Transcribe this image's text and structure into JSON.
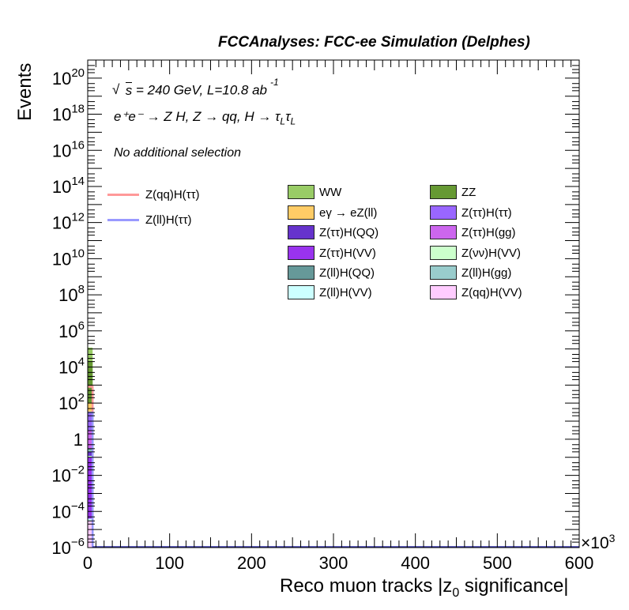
{
  "header": {
    "title": "FCCAnalyses: FCC-ee Simulation (Delphes)"
  },
  "annotations": {
    "sqrt_s": "s",
    "energy_lumi": " = 240 GeV, L=10.8 ab",
    "lumi_exp": "-1",
    "process": "e⁺e⁻ → Z H, Z  → qq, H  → τ",
    "process_sub1": "L",
    "process_tau2": "τ",
    "process_sub2": "L",
    "selection": "No additional selection"
  },
  "axes": {
    "ylabel": "Events",
    "xlabel_pre": "Reco muon tracks |z",
    "xlabel_sub": "0",
    "xlabel_post": " significance|",
    "x_multiplier": "×10",
    "x_multiplier_exp": "3"
  },
  "chart_data": {
    "type": "bar",
    "title": "FCCAnalyses: FCC-ee Simulation (Delphes)",
    "xlabel": "Reco muon tracks |z0 significance|",
    "ylabel": "Events",
    "xlim": [
      0,
      600
    ],
    "x_multiplier": 1000,
    "ylim": [
      1e-06,
      1e+21
    ],
    "ylog": true,
    "x_ticks": [
      "0",
      "100",
      "200",
      "300",
      "400",
      "500",
      "600"
    ],
    "y_ticks": [
      {
        "exp": -6,
        "base": "10",
        "sup": "−6"
      },
      {
        "exp": -4,
        "base": "10",
        "sup": "−4"
      },
      {
        "exp": -2,
        "base": "10",
        "sup": "−2"
      },
      {
        "exp": 0,
        "base": "1",
        "sup": ""
      },
      {
        "exp": 2,
        "base": "10",
        "sup": "2"
      },
      {
        "exp": 4,
        "base": "10",
        "sup": "4"
      },
      {
        "exp": 6,
        "base": "10",
        "sup": "6"
      },
      {
        "exp": 8,
        "base": "10",
        "sup": "8"
      },
      {
        "exp": 10,
        "base": "10",
        "sup": "10"
      },
      {
        "exp": 12,
        "base": "10",
        "sup": "12"
      },
      {
        "exp": 14,
        "base": "10",
        "sup": "14"
      },
      {
        "exp": 16,
        "base": "10",
        "sup": "16"
      },
      {
        "exp": 18,
        "base": "10",
        "sup": "18"
      },
      {
        "exp": 20,
        "base": "10",
        "sup": "20"
      }
    ],
    "first_bin": [
      0,
      6
    ],
    "stack": [
      {
        "name": "Z(qq)H(VV)",
        "color": "#ffccff",
        "top": 3e-05
      },
      {
        "name": "Z(ll)H(VV)",
        "color": "#ccffff",
        "top": 4e-05
      },
      {
        "name": "Z(ττ)H(VV)",
        "color": "#9933ee",
        "top": 0.1
      },
      {
        "name": "Z(νν)H(VV)",
        "color": "#ccffcc",
        "top": 0.12
      },
      {
        "name": "Z(ττ)H(QQ)",
        "color": "#6633cc",
        "top": 0.2
      },
      {
        "name": "Z(ll)H(gg)",
        "color": "#99cccc",
        "top": 0.25
      },
      {
        "name": "Z(ll)H(QQ)",
        "color": "#669999",
        "top": 0.3
      },
      {
        "name": "Z(ττ)H(gg)",
        "color": "#cc66ee",
        "top": 3
      },
      {
        "name": "Z(ττ)H(ττ)",
        "color": "#9966ff",
        "top": 30
      },
      {
        "name": "eγ → eZ(ll)",
        "color": "#ffcc66",
        "top": 100
      },
      {
        "name": "ZZ",
        "color": "#669933",
        "top": 20000
      },
      {
        "name": "WW",
        "color": "#99cc66",
        "top": 120000
      }
    ],
    "overlay_lines": [
      {
        "name": "Z(qq)H(ττ)",
        "color": "#ff9999",
        "value": 800
      },
      {
        "name": "Z(ll)H(ττ)",
        "color": "#9999ff",
        "value": 30
      }
    ],
    "legend": {
      "lines": [
        {
          "name": "Z(qq)H(ττ)",
          "color": "#ff9999"
        },
        {
          "name": "Z(ll)H(ττ)",
          "color": "#9999ff"
        }
      ],
      "boxes": [
        {
          "name": "WW",
          "color": "#99cc66"
        },
        {
          "name": "ZZ",
          "color": "#669933"
        },
        {
          "name": "eγ → eZ(ll)",
          "color": "#ffcc66"
        },
        {
          "name": "Z(ττ)H(ττ)",
          "color": "#9966ff"
        },
        {
          "name": "Z(ττ)H(QQ)",
          "color": "#6633cc"
        },
        {
          "name": "Z(ττ)H(gg)",
          "color": "#cc66ee"
        },
        {
          "name": "Z(ττ)H(VV)",
          "color": "#9933ee"
        },
        {
          "name": "Z(νν)H(VV)",
          "color": "#ccffcc"
        },
        {
          "name": "Z(ll)H(QQ)",
          "color": "#669999"
        },
        {
          "name": "Z(ll)H(gg)",
          "color": "#99cccc"
        },
        {
          "name": "Z(ll)H(VV)",
          "color": "#ccffff"
        },
        {
          "name": "Z(qq)H(VV)",
          "color": "#ffccff"
        }
      ]
    }
  }
}
